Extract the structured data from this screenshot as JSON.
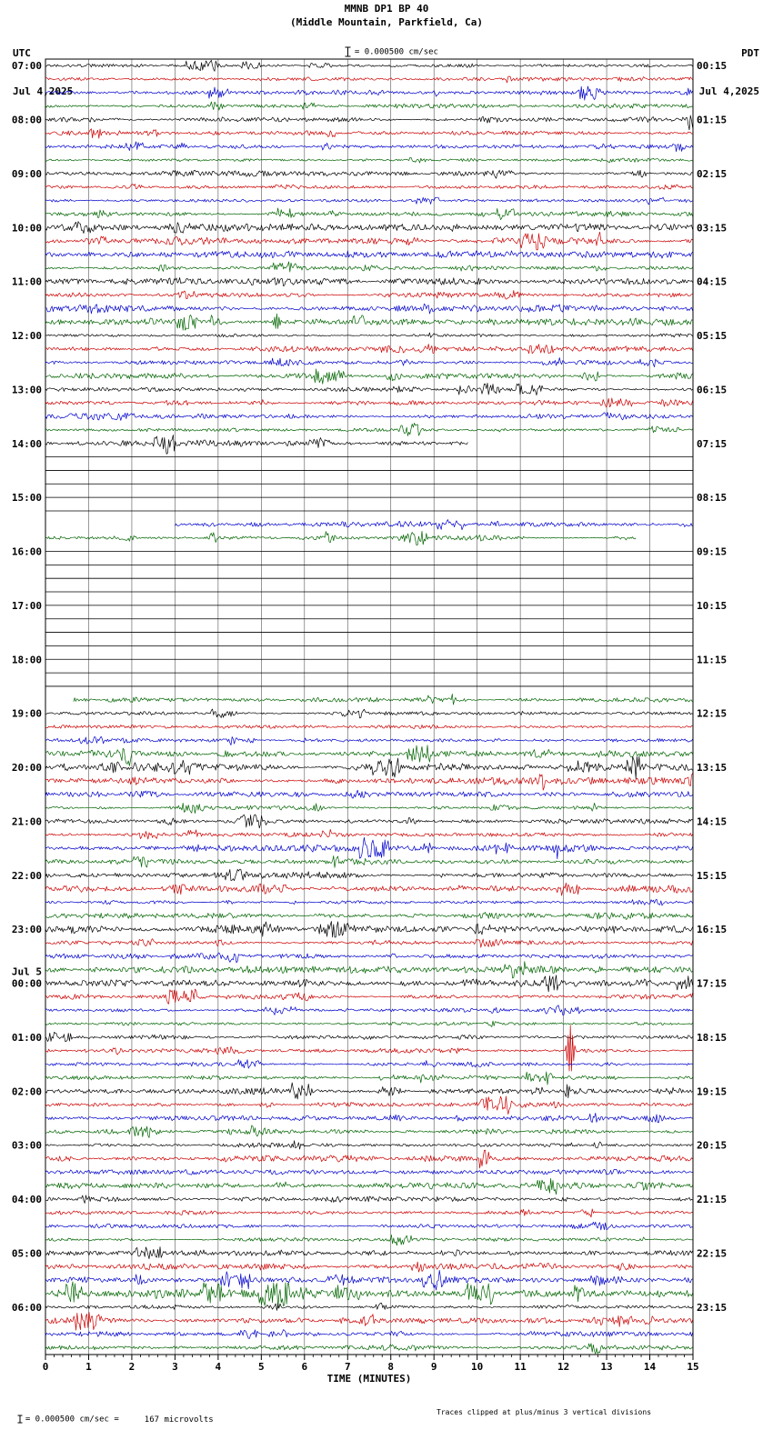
{
  "header": {
    "title": "MMNB DP1 BP 40",
    "subtitle": "(Middle Mountain, Parkfield, Ca)",
    "left_tz": "UTC",
    "left_date": "Jul 4,2025",
    "right_tz": "PDT",
    "right_date": "Jul 4,2025",
    "scale_label": "= 0.000500 cm/sec"
  },
  "footer": {
    "scale_text": "= 0.000500 cm/sec =",
    "microvolts": "167 microvolts",
    "clip_note": "Traces clipped at plus/minus 3 vertical divisions"
  },
  "chart_data": {
    "type": "line",
    "kind": "helicorder-seismogram",
    "title": "MMNB DP1 BP 40 (Middle Mountain, Parkfield, Ca)",
    "xlabel": "TIME (MINUTES)",
    "minutes_per_row": 15,
    "rows_per_hour": 4,
    "x_tick_labels": [
      "0",
      "1",
      "2",
      "3",
      "4",
      "5",
      "6",
      "7",
      "8",
      "9",
      "10",
      "11",
      "12",
      "13",
      "14",
      "15"
    ],
    "utc_hours": [
      "07:00",
      "08:00",
      "09:00",
      "10:00",
      "11:00",
      "12:00",
      "13:00",
      "14:00",
      "15:00",
      "16:00",
      "17:00",
      "18:00",
      "19:00",
      "20:00",
      "21:00",
      "22:00",
      "23:00",
      "00:00",
      "01:00",
      "02:00",
      "03:00",
      "04:00",
      "05:00",
      "06:00"
    ],
    "utc_day_marks": [
      {
        "hour_index": 17,
        "label": "Jul 5"
      }
    ],
    "pdt_labels": [
      "00:15",
      "01:15",
      "02:15",
      "03:15",
      "04:15",
      "05:15",
      "06:15",
      "07:15",
      "08:15",
      "09:15",
      "10:15",
      "11:15",
      "12:15",
      "13:15",
      "14:15",
      "15:15",
      "16:15",
      "17:15",
      "18:15",
      "19:15",
      "20:15",
      "21:15",
      "22:15",
      "23:15"
    ],
    "trace_colors": [
      "#000000",
      "#cc0000",
      "#0000cc",
      "#006400"
    ],
    "flat_color": "#000000",
    "grid_color": "#555555",
    "flat_rows": [
      29,
      30,
      31,
      32,
      33,
      36,
      37,
      38,
      39,
      40,
      41,
      42,
      43,
      44,
      45,
      46
    ],
    "partial_rows": [
      {
        "row": 28,
        "from": 0,
        "to": 9.8
      },
      {
        "row": 34,
        "from": 3.0,
        "to": 15
      },
      {
        "row": 35,
        "from": 0,
        "to": 13.7
      },
      {
        "row": 47,
        "from": 0.65,
        "to": 15
      }
    ],
    "events": [
      {
        "row": 19,
        "minute": 5.35,
        "amp": 9
      },
      {
        "row": 73,
        "minute": 12.15,
        "amp": 28
      }
    ],
    "legend": "none",
    "grid": "vertical-minute-lines"
  }
}
